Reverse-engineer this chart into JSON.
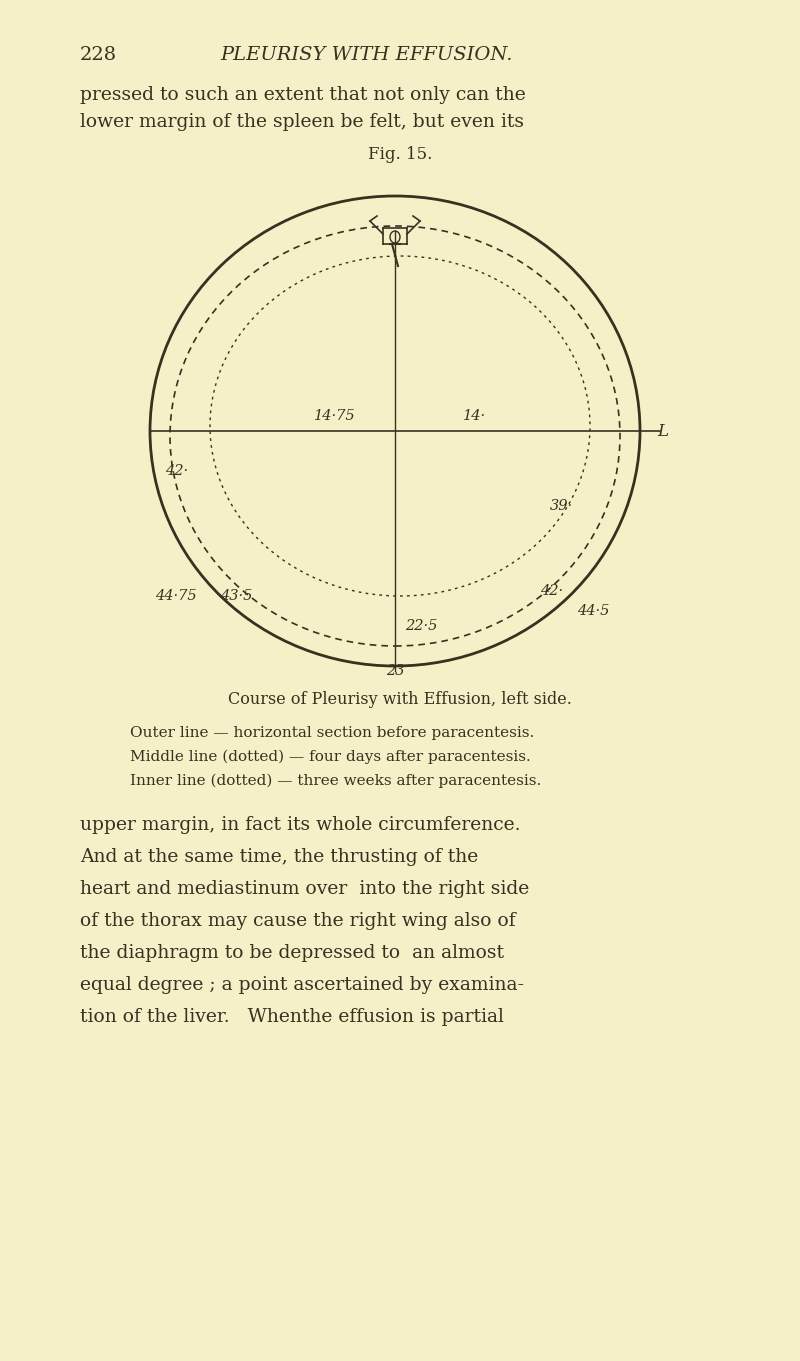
{
  "bg_color": "#f5f0c8",
  "text_color": "#3a3020",
  "page_number": "228",
  "page_title": "PLEURISY WITH EFFUSION.",
  "para1_line1": "pressed to such an extent that not only can the",
  "para1_line2": "lower margin of the spleen be felt, but even its",
  "fig_label": "Fig. 15.",
  "fig_title": "Course of Pleurisy with Effusion, left side.",
  "legend1": "Outer line — horizontal section before paracentesis.",
  "legend2": "Middle line (dotted) — four days after paracentesis.",
  "legend3": "Inner line (dotted) — three weeks after paracentesis.",
  "para2_line1": "upper margin, in fact its whole circumference.",
  "para2_line2": "And at the same time, the thrusting of the",
  "para2_line3": "heart and mediastinum over  into the right side",
  "para2_line4": "of the thorax may cause the right wing also of",
  "para2_line5": "the diaphragm to be depressed to  an almost",
  "para2_line6": "equal degree ; a point ascertained by examina-",
  "para2_line7": "tion of the liver.   Whenthe effusion is partial",
  "label_1475": "14·75",
  "label_14": "14·",
  "label_L": "L",
  "label_42_left": "42·",
  "label_39": "39·",
  "label_4475": "44·75",
  "label_435": "43·5",
  "label_225": "22·5",
  "label_42_right": "42·",
  "label_445": "44·5",
  "label_23": "23"
}
